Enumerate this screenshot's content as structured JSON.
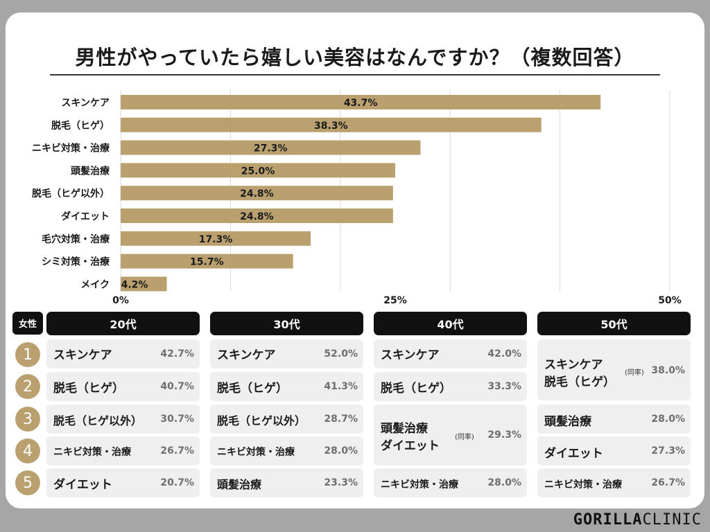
{
  "title": "男性がやっていたら嬉しい美容はなんですか？（複数回答）",
  "chart_data": {
    "type": "bar",
    "orientation": "horizontal",
    "title": "男性がやっていたら嬉しい美容はなんですか？（複数回答）",
    "categories": [
      "スキンケア",
      "脱毛（ヒゲ）",
      "ニキビ対策・治療",
      "頭髪治療",
      "脱毛（ヒゲ以外）",
      "ダイエット",
      "毛穴対策・治療",
      "シミ対策・治療",
      "メイク"
    ],
    "values": [
      43.7,
      38.3,
      27.3,
      25.0,
      24.8,
      24.8,
      17.3,
      15.7,
      4.2
    ],
    "value_labels": [
      "43.7%",
      "38.3%",
      "27.3%",
      "25.0%",
      "24.8%",
      "24.8%",
      "17.3%",
      "15.7%",
      "4.2%"
    ],
    "xlim": [
      0,
      50
    ],
    "ticks": [
      {
        "value": 0,
        "label": "0%"
      },
      {
        "value": 25,
        "label": "25%"
      },
      {
        "value": 50,
        "label": "50%"
      }
    ],
    "gridlines": [
      0,
      10,
      20,
      30,
      40,
      50
    ],
    "bar_color": "#b9a06e"
  },
  "table": {
    "gender_label": "女性",
    "ranks": [
      "1",
      "2",
      "3",
      "4",
      "5"
    ],
    "same_rate_label": "(同率)",
    "columns": [
      {
        "header": "20代",
        "rows": [
          {
            "name": "スキンケア",
            "pct": "42.7%"
          },
          {
            "name": "脱毛（ヒゲ）",
            "pct": "40.7%"
          },
          {
            "name": "脱毛（ヒゲ以外）",
            "pct": "30.7%"
          },
          {
            "name": "ニキビ対策・治療",
            "pct": "26.7%"
          },
          {
            "name": "ダイエット",
            "pct": "20.7%"
          }
        ]
      },
      {
        "header": "30代",
        "rows": [
          {
            "name": "スキンケア",
            "pct": "52.0%"
          },
          {
            "name": "脱毛（ヒゲ）",
            "pct": "41.3%"
          },
          {
            "name": "脱毛（ヒゲ以外）",
            "pct": "28.7%"
          },
          {
            "name": "ニキビ対策・治療",
            "pct": "28.0%"
          },
          {
            "name": "頭髪治療",
            "pct": "23.3%"
          }
        ]
      },
      {
        "header": "40代",
        "rows": [
          {
            "name": "スキンケア",
            "pct": "42.0%"
          },
          {
            "name": "脱毛（ヒゲ）",
            "pct": "33.3%"
          },
          {
            "name1": "頭髪治療",
            "name2": "ダイエット",
            "pct": "29.3%",
            "tied": true
          },
          {
            "name": "ニキビ対策・治療",
            "pct": "28.0%"
          }
        ]
      },
      {
        "header": "50代",
        "rows": [
          {
            "name1": "スキンケア",
            "name2": "脱毛（ヒゲ）",
            "pct": "38.0%",
            "tied": true
          },
          {
            "name": "頭髪治療",
            "pct": "28.0%"
          },
          {
            "name": "ダイエット",
            "pct": "27.3%"
          },
          {
            "name": "ニキビ対策・治療",
            "pct": "26.7%"
          }
        ]
      }
    ]
  },
  "logo": {
    "bold": "GORILLA",
    "thin": "CLINIC"
  }
}
